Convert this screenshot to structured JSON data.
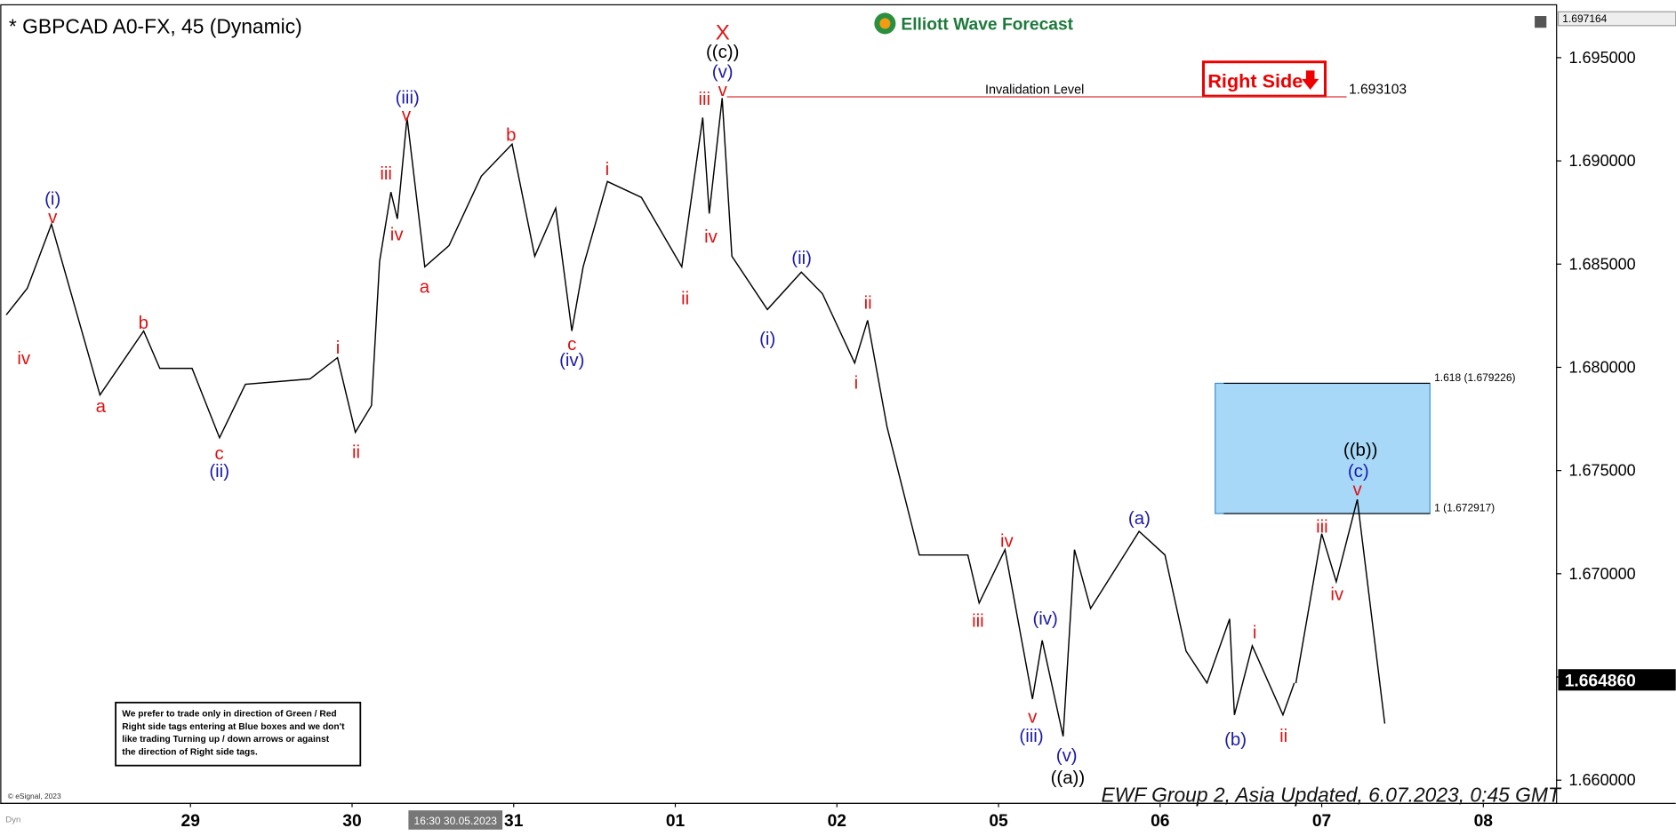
{
  "chart_data": {
    "type": "line",
    "title": "* GBPCAD A0-FX, 45 (Dynamic)",
    "logo": "Elliott Wave Forecast",
    "footer": "EWF Group 2, Asia Updated, 6.07.2023, 0:45 GMT",
    "copyright": "© eSignal, 2023",
    "corner_label": "Dyn",
    "top_price": "1.697164",
    "cursor_time": "16:30 30.05.2023",
    "right_side": "Right Side",
    "note": [
      "We prefer to trade only in direction of Green / Red",
      "Right side tags entering at Blue boxes and we don't",
      "like trading Turning up / down arrows or against",
      "the direction of Right side tags."
    ],
    "xlim": [
      -1.177,
      8.45
    ],
    "xticks": [
      {
        "value": 0,
        "label": "29"
      },
      {
        "value": 1,
        "label": "30"
      },
      {
        "value": 2,
        "label": "31"
      },
      {
        "value": 3,
        "label": "01"
      },
      {
        "value": 4,
        "label": "02"
      },
      {
        "value": 5,
        "label": "05"
      },
      {
        "value": 6,
        "label": "06"
      },
      {
        "value": 7,
        "label": "07"
      },
      {
        "value": 8,
        "label": "08"
      }
    ],
    "ylim": [
      1.6589,
      1.69738
    ],
    "yticks": [
      {
        "value": 1.66,
        "label": "1.660000"
      },
      {
        "value": 1.665,
        "label": "1.665000"
      },
      {
        "value": 1.67,
        "label": "1.670000"
      },
      {
        "value": 1.675,
        "label": "1.675000"
      },
      {
        "value": 1.68,
        "label": "1.680000"
      },
      {
        "value": 1.685,
        "label": "1.685000"
      },
      {
        "value": 1.69,
        "label": "1.690000"
      },
      {
        "value": 1.695,
        "label": "1.695000"
      }
    ],
    "series": [
      {
        "color": "#000000",
        "x": [
          -1.14,
          -1.01,
          -0.86,
          -0.56,
          -0.29,
          -0.19,
          0.01,
          0.18,
          0.34,
          0.74,
          0.91,
          1.02,
          1.12,
          1.17,
          1.24,
          1.28,
          1.34,
          1.45,
          1.6,
          1.8,
          1.99,
          2.13,
          2.26,
          2.36,
          2.43,
          2.58,
          2.79,
          3.04,
          3.17,
          3.21,
          3.29,
          3.35,
          3.57,
          3.78,
          3.91,
          4.11,
          4.19,
          4.31,
          4.51,
          4.81,
          4.88,
          5.04,
          5.21,
          5.27,
          5.4,
          5.47,
          5.57,
          5.87,
          6.03,
          6.16,
          6.29,
          6.43,
          6.46,
          6.57,
          6.76,
          6.83
        ],
        "values": [
          1.68254,
          1.68383,
          1.68693,
          1.67866,
          1.68176,
          1.67995,
          1.67995,
          1.67659,
          1.67918,
          1.67944,
          1.68047,
          1.67685,
          1.67815,
          1.68513,
          1.68849,
          1.68719,
          1.6921,
          1.68487,
          1.6859,
          1.68926,
          1.69081,
          1.68538,
          1.68771,
          1.68176,
          1.68487,
          1.689,
          1.68823,
          1.68487,
          1.6921,
          1.68745,
          1.69304,
          1.68538,
          1.6828,
          1.68461,
          1.68357,
          1.68021,
          1.68228,
          1.67711,
          1.67091,
          1.67091,
          1.66858,
          1.67117,
          1.66393,
          1.66677,
          1.66212,
          1.67117,
          1.66832,
          1.67205,
          1.67091,
          1.66626,
          1.66471,
          1.66781,
          1.66316,
          1.66651,
          1.66316,
          1.66471
        ]
      },
      {
        "color": "#000000",
        "x": [
          6.84,
          7.0,
          7.09,
          7.22,
          7.39
        ],
        "values": [
          1.6647,
          1.67194,
          1.66961,
          1.6736,
          1.66274
        ]
      }
    ],
    "last_price": {
      "value": 1.66486,
      "label": "1.664860"
    },
    "invalidation": {
      "label": "Invalidation Level",
      "value": 1.693103
    },
    "blue_box": {
      "top": {
        "value": 1.679226,
        "label": "1.618 (1.679226)"
      },
      "bottom": {
        "value": 1.672917,
        "label": "1 (1.672917)"
      }
    },
    "wave_labels": [
      {
        "text": "iv",
        "color": "#dd1111"
      },
      {
        "text": "(i)",
        "color": "#1a1aaa"
      },
      {
        "text": "v",
        "color": "#dd1111"
      },
      {
        "text": "a",
        "color": "#dd1111"
      },
      {
        "text": "b",
        "color": "#dd1111"
      },
      {
        "text": "c",
        "color": "#dd1111"
      },
      {
        "text": "(ii)",
        "color": "#1a1aaa"
      },
      {
        "text": "i",
        "color": "#dd1111"
      },
      {
        "text": "ii",
        "color": "#dd1111"
      },
      {
        "text": "iii",
        "color": "#dd1111"
      },
      {
        "text": "iv",
        "color": "#dd1111"
      },
      {
        "text": "(iii)",
        "color": "#1a1aaa"
      },
      {
        "text": "v",
        "color": "#dd1111"
      },
      {
        "text": "a",
        "color": "#dd1111"
      },
      {
        "text": "b",
        "color": "#dd1111"
      },
      {
        "text": "c",
        "color": "#dd1111"
      },
      {
        "text": "(iv)",
        "color": "#1a1aaa"
      },
      {
        "text": "i",
        "color": "#dd1111"
      },
      {
        "text": "ii",
        "color": "#dd1111"
      },
      {
        "text": "iii",
        "color": "#dd1111"
      },
      {
        "text": "iv",
        "color": "#dd1111"
      },
      {
        "text": "X",
        "color": "#dd1111"
      },
      {
        "text": "((c))",
        "color": "#000000"
      },
      {
        "text": "(v)",
        "color": "#1a1aaa"
      },
      {
        "text": "v",
        "color": "#dd1111"
      },
      {
        "text": "(i)",
        "color": "#1a1aaa"
      },
      {
        "text": "(ii)",
        "color": "#1a1aaa"
      },
      {
        "text": "ii",
        "color": "#dd1111"
      },
      {
        "text": "i",
        "color": "#dd1111"
      },
      {
        "text": "iv",
        "color": "#dd1111"
      },
      {
        "text": "iii",
        "color": "#dd1111"
      },
      {
        "text": "(iv)",
        "color": "#1a1aaa"
      },
      {
        "text": "v",
        "color": "#dd1111"
      },
      {
        "text": "(iii)",
        "color": "#1a1aaa"
      },
      {
        "text": "(v)",
        "color": "#1a1aaa"
      },
      {
        "text": "((a))",
        "color": "#000000"
      },
      {
        "text": "(a)",
        "color": "#1a1aaa"
      },
      {
        "text": "(b)",
        "color": "#1a1aaa"
      },
      {
        "text": "i",
        "color": "#dd1111"
      },
      {
        "text": "ii",
        "color": "#dd1111"
      },
      {
        "text": "iii",
        "color": "#dd1111"
      },
      {
        "text": "iv",
        "color": "#dd1111"
      },
      {
        "text": "((b))",
        "color": "#000000"
      },
      {
        "text": "(c)",
        "color": "#1a1aaa"
      },
      {
        "text": "v",
        "color": "#dd1111"
      }
    ]
  }
}
